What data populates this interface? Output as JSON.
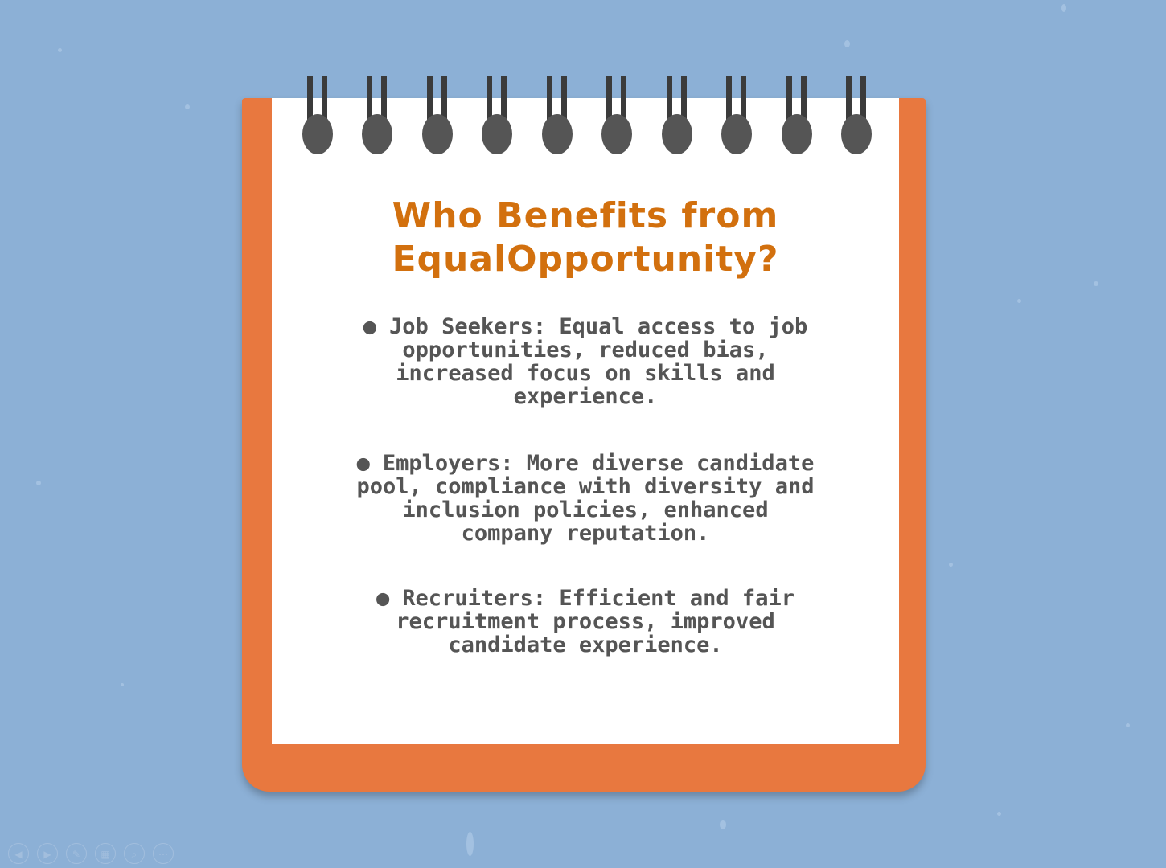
{
  "slide": {
    "title_line1": "Who Benefits from",
    "title_line2": "EqualOpportunity?",
    "bullets": [
      "Job Seekers: Equal access to job opportunities, reduced bias, increased focus on skills and experience.",
      "Employers: More diverse candidate pool, compliance with diversity and inclusion policies, enhanced company reputation.",
      "Recruiters: Efficient and fair recruitment process, improved candidate experience."
    ],
    "bullet_glyph": "●"
  },
  "controls": {
    "previous_icon": "◀",
    "next_icon": "▶",
    "pen_icon": "✎",
    "slides_icon": "▦",
    "zoom_icon": "⌕",
    "more_icon": "⋯"
  },
  "colors": {
    "background": "#8cb0d6",
    "notebook_border": "#e8783f",
    "page": "#ffffff",
    "title": "#d2700e",
    "body_text": "#555555",
    "rings": "#555555"
  }
}
